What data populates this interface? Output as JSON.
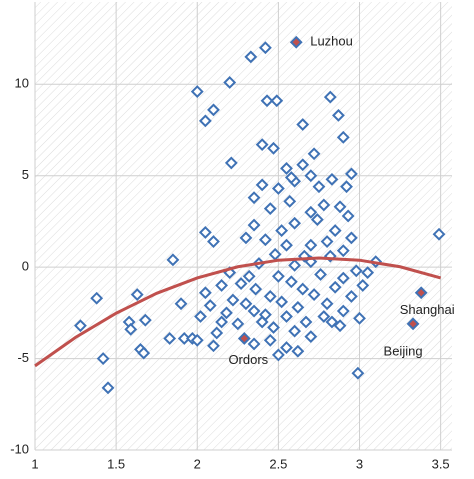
{
  "chart_data": {
    "type": "scatter",
    "x": [
      1.28,
      1.38,
      1.42,
      1.45,
      1.58,
      1.59,
      1.63,
      1.65,
      1.67,
      1.68,
      1.85,
      1.9,
      1.92,
      1.97,
      1.83,
      2.0,
      2.05,
      2.1,
      2.2,
      2.21,
      2.33,
      2.42,
      2.43,
      2.49,
      2.4,
      2.47,
      2.55,
      2.65,
      2.72,
      2.82,
      2.9,
      2.87,
      2.95,
      3.05,
      3.1,
      3.49,
      2.99,
      2.35,
      2.5,
      2.62,
      2.55,
      2.78,
      2.05,
      2.1,
      2.3,
      2.35,
      2.45,
      2.5,
      2.52,
      2.57,
      2.6,
      2.65,
      2.7,
      2.75,
      2.78,
      2.83,
      2.88,
      2.92,
      2.93,
      2.95,
      2.9,
      2.85,
      2.8,
      2.74,
      2.7,
      2.66,
      2.6,
      2.55,
      2.48,
      2.42,
      2.38,
      2.32,
      2.27,
      2.22,
      2.18,
      2.15,
      2.12,
      2.08,
      2.05,
      2.02,
      2.0,
      2.1,
      2.25,
      2.3,
      2.36,
      2.42,
      2.47,
      2.52,
      2.58,
      2.62,
      2.67,
      2.72,
      2.76,
      2.8,
      2.85,
      2.9,
      2.95,
      3.0,
      3.02,
      2.98,
      2.88,
      2.83,
      2.7,
      2.6,
      2.45,
      2.4,
      2.55,
      2.65,
      2.5,
      2.45,
      2.35,
      2.2,
      2.15,
      2.6,
      2.7,
      2.82,
      2.9,
      2.35,
      2.4,
      2.58,
      2.7
    ],
    "values": [
      -3.2,
      -1.7,
      -5.0,
      -6.6,
      -3.0,
      -3.4,
      -1.5,
      -4.5,
      -4.7,
      -2.9,
      0.4,
      -2.0,
      -3.9,
      -3.9,
      -3.9,
      9.6,
      8.0,
      8.6,
      10.1,
      5.7,
      11.5,
      12.0,
      9.1,
      9.1,
      6.7,
      6.5,
      5.4,
      7.8,
      6.2,
      9.3,
      7.1,
      8.3,
      5.1,
      -0.3,
      0.3,
      1.8,
      -5.8,
      -4.2,
      -4.8,
      -4.6,
      -4.4,
      -2.7,
      1.9,
      1.4,
      1.6,
      2.3,
      3.2,
      4.3,
      2.0,
      3.6,
      4.7,
      5.6,
      5.0,
      4.4,
      3.4,
      4.8,
      3.3,
      4.4,
      2.8,
      1.6,
      0.9,
      2.0,
      1.4,
      2.6,
      1.2,
      0.6,
      2.4,
      1.2,
      0.7,
      1.5,
      0.2,
      -0.5,
      -0.9,
      -1.8,
      -2.5,
      -3.0,
      -3.6,
      -2.1,
      -1.4,
      -2.7,
      -4.0,
      -4.3,
      -3.1,
      -2.0,
      -1.2,
      -2.6,
      -3.3,
      -1.9,
      -0.8,
      -2.2,
      -3.0,
      -1.5,
      -0.4,
      -2.0,
      -1.1,
      -2.4,
      -1.6,
      -2.8,
      -1.0,
      -0.2,
      -3.2,
      -3.0,
      -3.8,
      -3.5,
      -4.0,
      -3.0,
      -2.7,
      -1.2,
      -0.5,
      -1.6,
      -2.4,
      -0.3,
      -1.0,
      0.1,
      0.3,
      0.6,
      -0.6,
      3.8,
      4.5,
      4.9,
      3.0
    ],
    "color": "#3f72b5",
    "highlights": [
      {
        "label": "Luzhou",
        "x": 2.61,
        "y": 12.3
      },
      {
        "label": "Shanghai",
        "x": 3.38,
        "y": -1.4
      },
      {
        "label": "Beijing",
        "x": 3.33,
        "y": -3.1
      },
      {
        "label": "Ordors",
        "x": 2.29,
        "y": -3.9
      }
    ],
    "highlight_color": "#c0504d",
    "fit": {
      "x": [
        1,
        1.25,
        1.5,
        1.75,
        2,
        2.25,
        2.5,
        2.75,
        3,
        3.25,
        3.5
      ],
      "values": [
        -5.4,
        -3.84,
        -2.52,
        -1.43,
        -0.59,
        0.02,
        0.38,
        0.5,
        0.38,
        0.02,
        -0.59
      ],
      "color": "#c0504d"
    },
    "xlim": [
      1,
      3.57
    ],
    "ylim": [
      -10,
      14.5
    ],
    "xticks": [
      1,
      1.5,
      2,
      2.5,
      3,
      3.5
    ],
    "yticks": [
      -10,
      -5,
      0,
      5,
      10
    ],
    "grid": true
  }
}
